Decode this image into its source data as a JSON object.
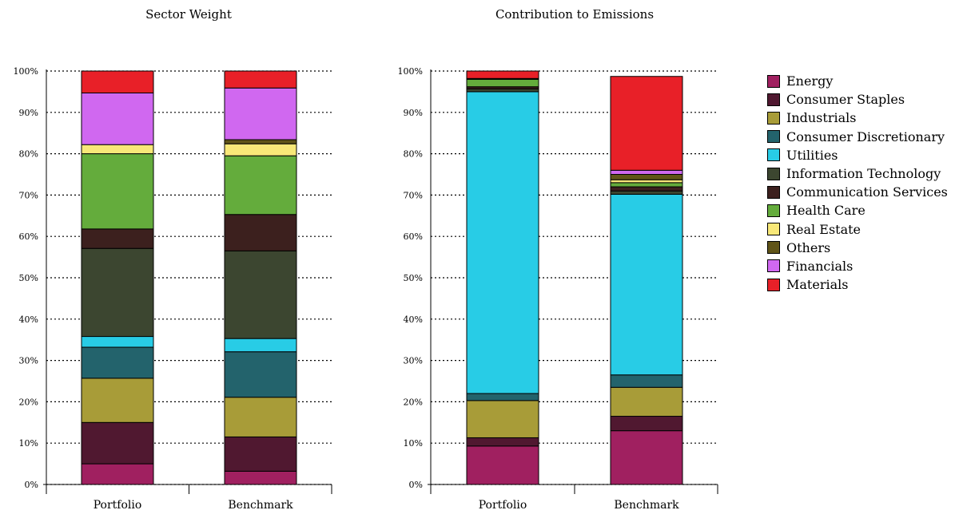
{
  "chart_data": [
    {
      "type": "bar",
      "stacked": true,
      "title": "Sector Weight",
      "categories": [
        "Portfolio",
        "Benchmark"
      ],
      "yticks": [
        "0%",
        "10%",
        "20%",
        "30%",
        "40%",
        "50%",
        "60%",
        "70%",
        "80%",
        "90%",
        "100%"
      ],
      "ylim": [
        0,
        100
      ],
      "grid": "dotted horizontal",
      "series": [
        {
          "name": "Energy",
          "values": [
            5.0,
            3.2
          ]
        },
        {
          "name": "Consumer Staples",
          "values": [
            10.0,
            8.3
          ]
        },
        {
          "name": "Industrials",
          "values": [
            10.7,
            9.6
          ]
        },
        {
          "name": "Consumer Discretionary",
          "values": [
            7.5,
            11.0
          ]
        },
        {
          "name": "Utilities",
          "values": [
            2.6,
            3.2
          ]
        },
        {
          "name": "Information Technology",
          "values": [
            21.3,
            21.2
          ]
        },
        {
          "name": "Communication Services",
          "values": [
            4.7,
            8.8
          ]
        },
        {
          "name": "Health Care",
          "values": [
            18.2,
            14.2
          ]
        },
        {
          "name": "Real Estate",
          "values": [
            2.2,
            2.9
          ]
        },
        {
          "name": "Others",
          "values": [
            0.0,
            1.0
          ]
        },
        {
          "name": "Financials",
          "values": [
            12.5,
            12.5
          ]
        },
        {
          "name": "Materials",
          "values": [
            5.3,
            4.1
          ]
        }
      ]
    },
    {
      "type": "bar",
      "stacked": true,
      "title": "Contribution to Emissions",
      "categories": [
        "Portfolio",
        "Benchmark"
      ],
      "yticks": [
        "0%",
        "10%",
        "20%",
        "30%",
        "40%",
        "50%",
        "60%",
        "70%",
        "80%",
        "90%",
        "100%"
      ],
      "ylim": [
        0,
        100
      ],
      "grid": "dotted horizontal",
      "series": [
        {
          "name": "Energy",
          "values": [
            9.3,
            13.0
          ]
        },
        {
          "name": "Consumer Staples",
          "values": [
            2.0,
            3.5
          ]
        },
        {
          "name": "Industrials",
          "values": [
            9.0,
            7.0
          ]
        },
        {
          "name": "Consumer Discretionary",
          "values": [
            1.7,
            3.0
          ]
        },
        {
          "name": "Utilities",
          "values": [
            73.0,
            43.7
          ]
        },
        {
          "name": "Information Technology",
          "values": [
            0.7,
            0.8
          ]
        },
        {
          "name": "Communication Services",
          "values": [
            0.5,
            1.0
          ]
        },
        {
          "name": "Health Care",
          "values": [
            1.8,
            1.0
          ]
        },
        {
          "name": "Real Estate",
          "values": [
            0.2,
            0.7
          ]
        },
        {
          "name": "Others",
          "values": [
            0.0,
            1.3
          ]
        },
        {
          "name": "Financials",
          "values": [
            0.0,
            1.0
          ]
        },
        {
          "name": "Materials",
          "values": [
            1.8,
            22.7
          ]
        }
      ]
    }
  ],
  "legend": {
    "position": "right",
    "items": [
      {
        "label": "Energy",
        "color": "#a02060"
      },
      {
        "label": "Consumer Staples",
        "color": "#501830"
      },
      {
        "label": "Industrials",
        "color": "#a89c38"
      },
      {
        "label": "Consumer Discretionary",
        "color": "#23636c"
      },
      {
        "label": "Utilities",
        "color": "#28cce6"
      },
      {
        "label": "Information Technology",
        "color": "#3c4630"
      },
      {
        "label": "Communication Services",
        "color": "#3c201e"
      },
      {
        "label": "Health Care",
        "color": "#64ac3c"
      },
      {
        "label": "Real Estate",
        "color": "#f8e878"
      },
      {
        "label": "Others",
        "color": "#605418"
      },
      {
        "label": "Financials",
        "color": "#d068f0"
      },
      {
        "label": "Materials",
        "color": "#e82028"
      }
    ]
  }
}
